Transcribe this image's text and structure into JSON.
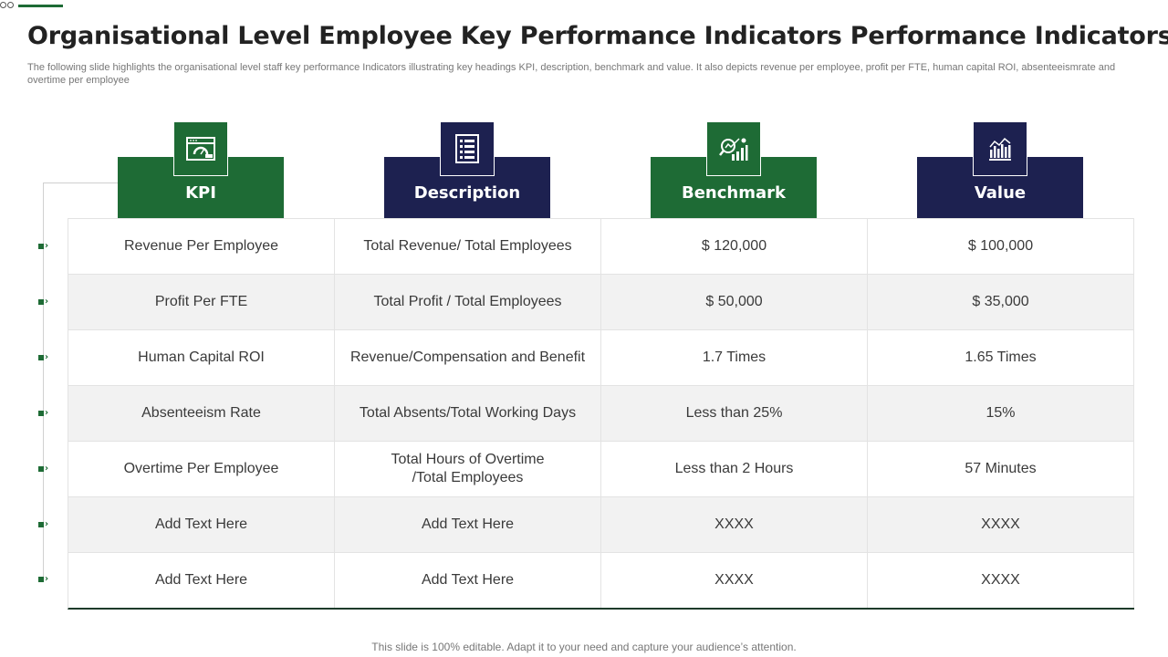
{
  "title": "Organisational Level Employee Key Performance Indicators Performance Indicators",
  "subtitle": "The following slide highlights the organisational level staff key performance Indicators illustrating key headings KPI, description, benchmark and value. It also depicts revenue per employee, profit per FTE, human capital ROI, absenteeismrate and overtime per employee",
  "columns": [
    {
      "label": "KPI",
      "icon": "dashboard-icon",
      "color": "#1e6b35"
    },
    {
      "label": "Description",
      "icon": "document-list-icon",
      "color": "#1d2150"
    },
    {
      "label": "Benchmark",
      "icon": "analytics-icon",
      "color": "#1e6b35"
    },
    {
      "label": "Value",
      "icon": "bar-chart-icon",
      "color": "#1d2150"
    }
  ],
  "rows": [
    [
      "Revenue  Per Employee",
      "Total Revenue/  Total Employees",
      "$ 120,000",
      "$ 100,000"
    ],
    [
      "Profit Per FTE",
      "Total Profit / Total Employees",
      "$ 50,000",
      "$ 35,000"
    ],
    [
      "Human  Capital ROI",
      "Revenue/Compensation  and Benefit",
      "1.7 Times",
      "1.65 Times"
    ],
    [
      "Absenteeism Rate",
      "Total Absents/Total  Working Days",
      "Less than 25%",
      "15%"
    ],
    [
      "Overtime  Per Employee",
      "Total Hours of Overtime\n/Total  Employees",
      "Less than  2 Hours",
      "57 Minutes"
    ],
    [
      "Add Text Here",
      "Add Text Here",
      "XXXX",
      "XXXX"
    ],
    [
      "Add Text Here",
      "Add Text Here",
      "XXXX",
      "XXXX"
    ]
  ],
  "footer": "This slide is 100% editable. Adapt it to your need and capture your audience’s attention.",
  "accent_green": "#1e6b35",
  "accent_navy": "#1d2150"
}
